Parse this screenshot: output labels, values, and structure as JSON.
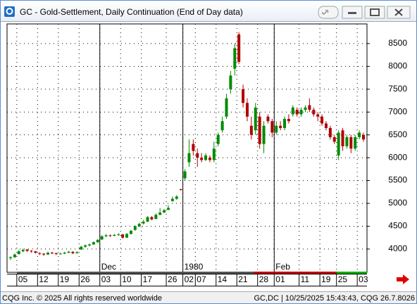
{
  "window": {
    "title": "GC - Gold-Settlement, Daily Continuation (End of Day data)"
  },
  "status_bar": {
    "left": "CQG Inc. © 2025 All rights reserved worldwide",
    "right": "GC,DC | 10/25/2025 15:43:43, CQG 26.7.8026"
  },
  "chart_data": {
    "type": "candlestick",
    "categories": [
      null,
      null,
      "05",
      null,
      null,
      null,
      null,
      "12",
      null,
      null,
      null,
      null,
      "19",
      null,
      null,
      null,
      null,
      "26",
      null,
      null,
      null,
      null,
      "03",
      null,
      null,
      null,
      null,
      "10",
      null,
      null,
      null,
      null,
      "17",
      null,
      null,
      null,
      null,
      null,
      "26",
      null,
      null,
      null,
      "02",
      null,
      null,
      "07",
      null,
      null,
      null,
      null,
      "14",
      null,
      null,
      null,
      null,
      "21",
      null,
      null,
      null,
      null,
      "28",
      null,
      null,
      null,
      "01",
      null,
      null,
      null,
      null,
      null,
      "11",
      null,
      null,
      null,
      null,
      "19",
      null,
      null,
      null,
      "25",
      null,
      null,
      null,
      null,
      "03",
      null
    ],
    "month_labels": [
      null,
      null,
      null,
      null,
      null,
      null,
      null,
      null,
      null,
      null,
      null,
      null,
      null,
      null,
      null,
      null,
      null,
      null,
      null,
      null,
      null,
      null,
      "Dec",
      null,
      null,
      null,
      null,
      null,
      null,
      null,
      null,
      null,
      null,
      null,
      null,
      null,
      null,
      null,
      null,
      null,
      null,
      null,
      "1980",
      null,
      null,
      null,
      null,
      null,
      null,
      null,
      null,
      null,
      null,
      null,
      null,
      null,
      null,
      null,
      null,
      null,
      null,
      null,
      null,
      null,
      "Feb",
      null,
      null,
      null,
      null,
      null,
      null,
      null,
      null,
      null,
      null,
      null,
      null,
      null,
      null,
      null,
      null,
      null,
      null,
      null,
      null,
      null
    ],
    "open": [
      3800,
      3820,
      3890,
      3950,
      3990,
      3960,
      3950,
      3910,
      3900,
      3880,
      3920,
      3910,
      3890,
      3900,
      3920,
      3940,
      3910,
      3990,
      4050,
      4080,
      4100,
      4150,
      4210,
      4280,
      4300,
      4290,
      4310,
      4320,
      4250,
      4330,
      4420,
      4500,
      4560,
      4600,
      4700,
      4660,
      4750,
      4800,
      4860,
      5050,
      5100,
      5310,
      5550,
      5900,
      6300,
      6100,
      6000,
      5950,
      6000,
      5950,
      6300,
      6600,
      6900,
      7500,
      7950,
      8700,
      7500,
      7200,
      6700,
      6600,
      6900,
      6300,
      6900,
      6800,
      6550,
      6700,
      6650,
      6850,
      6950,
      7050,
      6950,
      7050,
      7150,
      7050,
      6950,
      6900,
      6750,
      6650,
      6450,
      6050,
      6600,
      6250,
      6450,
      6200,
      6450,
      6500
    ],
    "high": [
      3840,
      3900,
      3980,
      4010,
      4000,
      3980,
      3960,
      3930,
      3910,
      3940,
      3940,
      3920,
      3920,
      3940,
      3960,
      3950,
      3950,
      4070,
      4100,
      4120,
      4170,
      4220,
      4300,
      4330,
      4320,
      4330,
      4350,
      4330,
      4350,
      4420,
      4520,
      4580,
      4640,
      4720,
      4720,
      4780,
      4900,
      4880,
      4960,
      5150,
      5180,
      5320,
      5750,
      6400,
      6400,
      6200,
      6100,
      6100,
      6050,
      6350,
      6550,
      6900,
      7400,
      7900,
      8500,
      8750,
      7600,
      7300,
      6900,
      7200,
      7000,
      6800,
      6950,
      6850,
      6800,
      6800,
      6900,
      6950,
      7150,
      7100,
      7100,
      7150,
      7300,
      7100,
      7000,
      6950,
      6800,
      6700,
      6500,
      6600,
      6650,
      6500,
      6500,
      6500,
      6600,
      6550
    ],
    "low": [
      3760,
      3810,
      3880,
      3930,
      3940,
      3920,
      3900,
      3870,
      3850,
      3870,
      3890,
      3870,
      3880,
      3890,
      3910,
      3890,
      3900,
      3980,
      4030,
      4060,
      4090,
      4130,
      4200,
      4260,
      4270,
      4280,
      4290,
      4230,
      4240,
      4320,
      4400,
      4480,
      4540,
      4590,
      4630,
      4650,
      4740,
      4790,
      4850,
      5040,
      5080,
      5280,
      5500,
      5800,
      6050,
      5800,
      5900,
      5930,
      5900,
      5900,
      6250,
      6550,
      6850,
      7400,
      7800,
      8050,
      7100,
      6800,
      6400,
      6500,
      6200,
      6100,
      6750,
      6450,
      6500,
      6600,
      6600,
      6750,
      6900,
      6900,
      6900,
      7000,
      7000,
      6900,
      6800,
      6700,
      6600,
      6400,
      6300,
      5950,
      6150,
      6200,
      6100,
      6150,
      6400,
      6350
    ],
    "close": [
      3820,
      3880,
      3950,
      3980,
      3960,
      3950,
      3920,
      3900,
      3880,
      3920,
      3910,
      3890,
      3900,
      3920,
      3940,
      3910,
      3930,
      4050,
      4080,
      4100,
      4150,
      4200,
      4280,
      4300,
      4290,
      4310,
      4320,
      4250,
      4330,
      4400,
      4500,
      4550,
      4600,
      4700,
      4650,
      4750,
      4800,
      4850,
      4900,
      5100,
      5150,
      5300,
      5700,
      6100,
      6150,
      6000,
      5950,
      6050,
      5950,
      6200,
      6500,
      6800,
      7300,
      7800,
      8400,
      8100,
      7200,
      6900,
      6500,
      7100,
      6300,
      6700,
      6800,
      6550,
      6700,
      6650,
      6850,
      6800,
      7100,
      6950,
      7050,
      7100,
      7050,
      6950,
      6900,
      6750,
      6650,
      6450,
      6350,
      6550,
      6250,
      6450,
      6200,
      6450,
      6550,
      6400
    ],
    "up_color": "#008a00",
    "down_color": "#b00000",
    "ylim": [
      3490,
      8930
    ],
    "yticks": [
      4000,
      4500,
      5000,
      5500,
      6000,
      6500,
      7000,
      7500,
      8000,
      8500
    ],
    "grid": true
  }
}
